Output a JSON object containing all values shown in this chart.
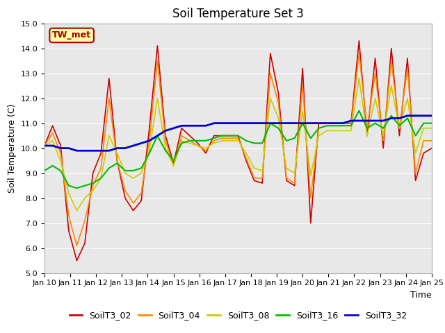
{
  "title": "Soil Temperature Set 3",
  "xlabel": "Time",
  "ylabel": "Soil Temperature (C)",
  "ylim": [
    5.0,
    15.0
  ],
  "yticks": [
    5.0,
    6.0,
    7.0,
    8.0,
    9.0,
    10.0,
    11.0,
    12.0,
    13.0,
    14.0,
    15.0
  ],
  "series_colors": {
    "SoilT3_02": "#cc0000",
    "SoilT3_04": "#ff8800",
    "SoilT3_08": "#cccc00",
    "SoilT3_16": "#00bb00",
    "SoilT3_32": "#0000cc"
  },
  "annotation_text": "TW_met",
  "annotation_bg": "#ffffaa",
  "annotation_border": "#aa0000",
  "plot_bg": "#e8e8e8",
  "fig_bg": "#ffffff",
  "title_fontsize": 12,
  "axis_label_fontsize": 9,
  "tick_fontsize": 8,
  "legend_fontsize": 9,
  "line_width": 1.2,
  "xtick_labels": [
    "Jan 10",
    "Jan 11",
    "Jan 12",
    "Jan 13",
    "Jan 14",
    "Jan 15",
    "Jan 16",
    "Jan 17",
    "Jan 18",
    "Jan 19",
    "Jan 20",
    "Jan 21",
    "Jan 22",
    "Jan 23",
    "Jan 24",
    "Jan 25"
  ],
  "SoilT3_02": [
    10.1,
    10.9,
    10.1,
    6.7,
    5.5,
    6.2,
    9.0,
    9.8,
    12.8,
    9.5,
    8.0,
    7.5,
    7.9,
    10.8,
    14.1,
    10.5,
    9.4,
    10.8,
    10.5,
    10.2,
    9.8,
    10.5,
    10.5,
    10.5,
    10.5,
    9.5,
    8.7,
    8.6,
    13.8,
    12.2,
    8.7,
    8.5,
    13.2,
    7.0,
    11.0,
    11.0,
    11.0,
    11.0,
    11.0,
    14.3,
    10.5,
    13.6,
    10.0,
    14.0,
    10.5,
    13.6,
    8.7,
    9.8,
    10.0
  ],
  "SoilT3_04": [
    10.1,
    10.6,
    9.8,
    7.3,
    6.1,
    7.1,
    8.5,
    9.2,
    12.0,
    9.5,
    8.3,
    7.8,
    8.2,
    10.3,
    13.5,
    10.3,
    9.3,
    10.5,
    10.3,
    10.1,
    9.9,
    10.3,
    10.4,
    10.4,
    10.4,
    9.6,
    8.8,
    8.8,
    13.0,
    11.8,
    8.8,
    8.6,
    12.5,
    8.0,
    10.8,
    10.9,
    10.9,
    10.9,
    10.9,
    13.8,
    10.8,
    13.0,
    10.3,
    13.5,
    10.8,
    13.2,
    9.0,
    10.3,
    10.3
  ],
  "SoilT3_08": [
    10.1,
    10.3,
    9.5,
    8.2,
    7.5,
    8.0,
    8.3,
    8.8,
    10.5,
    9.8,
    9.0,
    8.8,
    9.0,
    9.9,
    12.0,
    10.0,
    9.3,
    10.3,
    10.2,
    10.1,
    10.0,
    10.2,
    10.3,
    10.3,
    10.3,
    9.8,
    9.2,
    9.1,
    12.0,
    11.2,
    9.2,
    9.0,
    11.5,
    8.9,
    10.5,
    10.7,
    10.7,
    10.7,
    10.7,
    12.8,
    10.5,
    12.0,
    10.5,
    12.5,
    10.8,
    12.0,
    9.8,
    10.8,
    10.8
  ],
  "SoilT3_16": [
    9.1,
    9.3,
    9.1,
    8.5,
    8.4,
    8.5,
    8.6,
    8.8,
    9.2,
    9.4,
    9.1,
    9.1,
    9.2,
    9.8,
    10.5,
    9.9,
    9.5,
    10.2,
    10.3,
    10.3,
    10.3,
    10.4,
    10.5,
    10.5,
    10.5,
    10.3,
    10.2,
    10.2,
    11.0,
    10.8,
    10.3,
    10.4,
    11.0,
    10.4,
    10.8,
    10.9,
    10.9,
    10.9,
    10.9,
    11.5,
    10.8,
    11.0,
    10.8,
    11.3,
    10.9,
    11.2,
    10.5,
    11.0,
    11.0
  ],
  "SoilT3_32": [
    10.1,
    10.1,
    10.0,
    10.0,
    9.9,
    9.9,
    9.9,
    9.9,
    9.9,
    10.0,
    10.0,
    10.1,
    10.2,
    10.3,
    10.5,
    10.7,
    10.8,
    10.9,
    10.9,
    10.9,
    10.9,
    11.0,
    11.0,
    11.0,
    11.0,
    11.0,
    11.0,
    11.0,
    11.0,
    11.0,
    11.0,
    11.0,
    11.0,
    11.0,
    11.0,
    11.0,
    11.0,
    11.0,
    11.1,
    11.1,
    11.1,
    11.1,
    11.1,
    11.2,
    11.2,
    11.3,
    11.3,
    11.3,
    11.3
  ]
}
